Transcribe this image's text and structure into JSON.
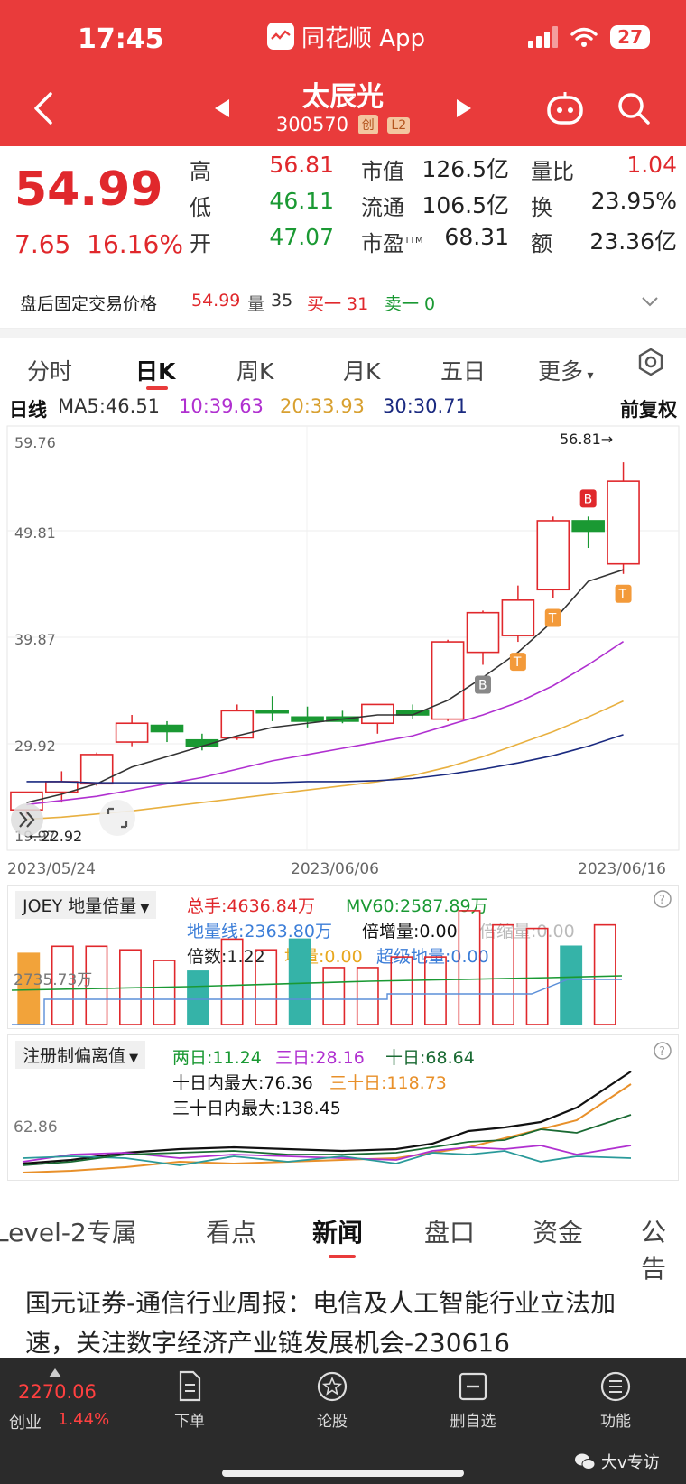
{
  "status": {
    "time": "17:45",
    "app_name": "同花顺 App",
    "battery": "27"
  },
  "header": {
    "stock_name": "太辰光",
    "stock_code": "300570",
    "tag1": "创",
    "tag2": "L2"
  },
  "quote": {
    "price": "54.99",
    "change": "7.65",
    "change_pct": "16.16%",
    "high_label": "高",
    "high": "56.81",
    "low_label": "低",
    "low": "46.11",
    "open_label": "开",
    "open": "47.07",
    "mktcap_label": "市值",
    "mktcap": "126.5亿",
    "float_label": "流通",
    "float": "106.5亿",
    "pe_label": "市盈",
    "pe_sup": "TTM",
    "pe": "68.31",
    "volratio_label": "量比",
    "volratio": "1.04",
    "turnover_label": "换",
    "turnover": "23.95%",
    "amount_label": "额",
    "amount": "23.36亿"
  },
  "afterhours": {
    "label": "盘后固定交易价格",
    "price": "54.99",
    "vol_label": "量",
    "vol": "35",
    "buy": "买一 31",
    "sell": "卖一 0"
  },
  "chart_tabs": [
    "分时",
    "日K",
    "周K",
    "月K",
    "五日",
    "更多"
  ],
  "ma": {
    "label": "日线",
    "ma5": "MA5:46.51",
    "ma10": "10:39.63",
    "ma20": "20:33.93",
    "ma30": "30:30.71",
    "adjust": "前复权"
  },
  "kline": {
    "y_ticks": [
      "59.76",
      "49.81",
      "39.87",
      "29.92",
      "19.97"
    ],
    "x_ticks": [
      "2023/05/24",
      "2023/06/06",
      "2023/06/16"
    ],
    "high_marker": "56.81→",
    "low_marker": "←22.92",
    "markers": [
      "B",
      "B",
      "T",
      "T",
      "T"
    ]
  },
  "chart_data": {
    "type": "candlestick",
    "x_start": "2023/05/24",
    "x_mid": "2023/06/06",
    "x_end": "2023/06/16",
    "ylim": [
      19.97,
      59.76
    ],
    "candles": [
      {
        "o": 23.5,
        "h": 25.0,
        "l": 22.92,
        "c": 25.2
      },
      {
        "o": 25.2,
        "h": 27.2,
        "l": 24.2,
        "c": 26.2
      },
      {
        "o": 26.0,
        "h": 29.0,
        "l": 25.8,
        "c": 28.8
      },
      {
        "o": 30.0,
        "h": 32.6,
        "l": 29.6,
        "c": 31.8
      },
      {
        "o": 31.6,
        "h": 32.0,
        "l": 30.0,
        "c": 31.0
      },
      {
        "o": 30.2,
        "h": 30.8,
        "l": 29.2,
        "c": 29.6
      },
      {
        "o": 30.4,
        "h": 33.6,
        "l": 30.2,
        "c": 33.0
      },
      {
        "o": 33.0,
        "h": 34.4,
        "l": 32.0,
        "c": 32.8
      },
      {
        "o": 32.4,
        "h": 33.4,
        "l": 31.4,
        "c": 32.0
      },
      {
        "o": 32.4,
        "h": 33.0,
        "l": 31.8,
        "c": 32.0
      },
      {
        "o": 31.8,
        "h": 33.6,
        "l": 30.8,
        "c": 33.6
      },
      {
        "o": 33.0,
        "h": 33.6,
        "l": 32.2,
        "c": 32.6
      },
      {
        "o": 32.2,
        "h": 39.8,
        "l": 32.0,
        "c": 39.6
      },
      {
        "o": 38.6,
        "h": 42.6,
        "l": 37.4,
        "c": 42.4
      },
      {
        "o": 40.2,
        "h": 45.0,
        "l": 39.6,
        "c": 43.6
      },
      {
        "o": 44.6,
        "h": 51.6,
        "l": 43.8,
        "c": 51.2
      },
      {
        "o": 51.2,
        "h": 51.6,
        "l": 48.6,
        "c": 50.2
      },
      {
        "o": 47.07,
        "h": 56.81,
        "l": 46.11,
        "c": 54.99
      }
    ],
    "ma5": [
      24.2,
      25.0,
      26.0,
      27.6,
      28.6,
      29.6,
      30.6,
      31.4,
      31.8,
      32.2,
      32.6,
      32.6,
      34.0,
      36.2,
      38.6,
      41.6,
      45.4,
      46.51
    ],
    "ma10": [
      24.0,
      24.4,
      24.8,
      25.4,
      26.0,
      26.6,
      27.4,
      28.2,
      28.8,
      29.4,
      30.0,
      30.6,
      31.6,
      32.6,
      33.8,
      35.4,
      37.4,
      39.63
    ],
    "ma20": [
      22.6,
      22.8,
      23.1,
      23.4,
      23.8,
      24.2,
      24.6,
      25.0,
      25.4,
      25.8,
      26.2,
      26.8,
      27.6,
      28.6,
      29.8,
      31.0,
      32.4,
      33.93
    ],
    "ma30": [
      26.2,
      26.2,
      26.1,
      26.1,
      26.1,
      26.1,
      26.1,
      26.1,
      26.2,
      26.2,
      26.3,
      26.5,
      26.9,
      27.4,
      28.0,
      28.7,
      29.6,
      30.71
    ]
  },
  "joey": {
    "title": "JOEY 地量倍量",
    "total": "总手:4636.84万",
    "mv60": "MV60:2587.89万",
    "dl_line": "地量线:2363.80万",
    "bz": "倍增量:0.00",
    "bs": "倍缩量:0.00",
    "bs2": "倍数:1.22",
    "dl": "地量:0.00",
    "cj": "超级地量:0.00",
    "axis": "2735.73万",
    "bars": [
      1.0,
      1.1,
      1.1,
      1.05,
      0.9,
      0.75,
      1.2,
      1.05,
      1.2,
      0.8,
      0.8,
      0.95,
      0.95,
      1.6,
      1.4,
      1.35,
      1.1,
      1.4
    ],
    "bar_colors": [
      "orange",
      "red",
      "red",
      "red",
      "red",
      "teal",
      "red",
      "red",
      "teal",
      "red",
      "red",
      "red",
      "red",
      "red",
      "red",
      "red",
      "teal",
      "red"
    ]
  },
  "deviation": {
    "title": "注册制偏离值",
    "d2": "两日:11.24",
    "d3": "三日:28.16",
    "d10": "十日:68.64",
    "max10": "十日内最大:76.36",
    "d30": "三十日:118.73",
    "max30": "三十日内最大:138.45",
    "axis": "62.86"
  },
  "news_tabs": [
    "Level-2专属",
    "看点",
    "新闻",
    "盘口",
    "资金",
    "公告"
  ],
  "news": {
    "headline": "国元证券-通信行业周报：电信及人工智能行业立法加速，关注数字经济产业链发展机会-230616"
  },
  "bottom_nav": {
    "index_value": "2270.06",
    "index_name": "创业",
    "index_pct": "1.44%",
    "items": [
      "下单",
      "论股",
      "删自选",
      "功能"
    ],
    "watermark": "大v专访"
  },
  "colors": {
    "header": "#e93b3b",
    "up": "#e0282c",
    "down": "#1a9933",
    "ma5": "#333333",
    "ma10": "#b030d0",
    "ma20": "#e8b040",
    "ma30": "#1a2a80"
  }
}
